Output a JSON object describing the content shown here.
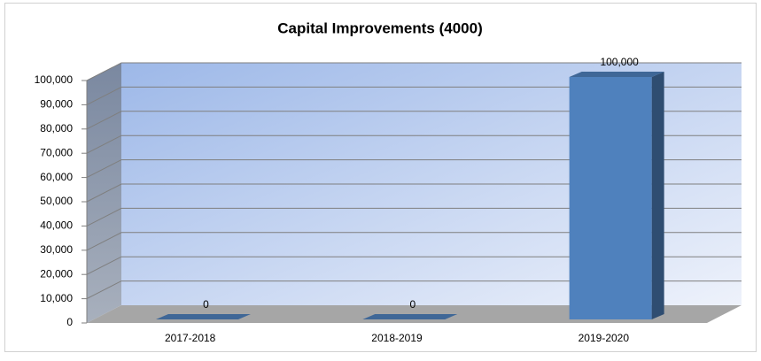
{
  "chart_data": {
    "type": "bar3d",
    "title": "Capital Improvements (4000)",
    "categories": [
      "2017-2018",
      "2018-2019",
      "2019-2020"
    ],
    "values": [
      0,
      0,
      100000
    ],
    "value_labels": [
      "0",
      "0",
      "100,000"
    ],
    "color": "#4f81bd",
    "ylim": [
      0,
      100000
    ],
    "yticks": [
      0,
      {
        "value": 10000,
        "label": "10,000"
      },
      {
        "value": 20000,
        "label": "20,000"
      },
      {
        "value": 30000,
        "label": "30,000"
      },
      {
        "value": 40000,
        "label": "40,000"
      },
      {
        "value": 50000,
        "label": "50,000"
      },
      {
        "value": 60000,
        "label": "60,000"
      },
      {
        "value": 70000,
        "label": "70,000"
      },
      {
        "value": 80000,
        "label": "80,000"
      },
      {
        "value": 90000,
        "label": "90,000"
      },
      {
        "value": 100000,
        "label": "100,000"
      }
    ],
    "grid": true
  }
}
